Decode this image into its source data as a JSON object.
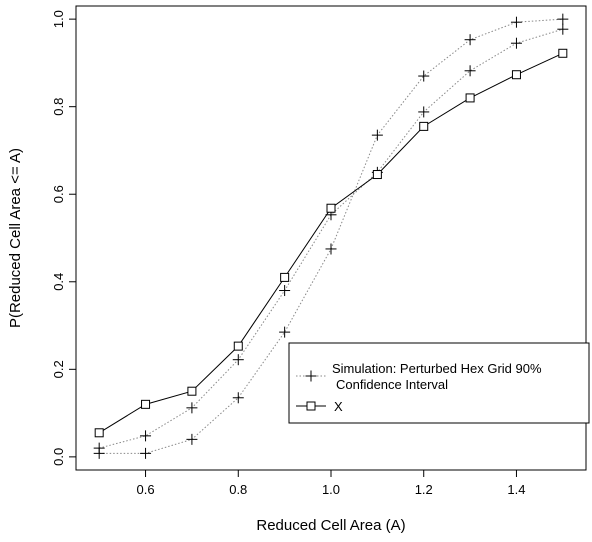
{
  "chart_data": {
    "type": "line",
    "xlabel": "Reduced Cell Area (A)",
    "ylabel": "P(Reduced Cell Area <= A)",
    "xlim": [
      0.45,
      1.55
    ],
    "ylim": [
      -0.03,
      1.03
    ],
    "x_ticks": [
      "0.6",
      "0.8",
      "1.0",
      "1.2",
      "1.4"
    ],
    "y_ticks": [
      "0.0",
      "0.2",
      "0.4",
      "0.6",
      "0.8",
      "1.0"
    ],
    "x": [
      0.5,
      0.6,
      0.7,
      0.8,
      0.9,
      1.0,
      1.1,
      1.2,
      1.3,
      1.4,
      1.5
    ],
    "legend_position": "lower-right",
    "series": [
      {
        "name": "Simulation: Perturbed Hex Grid 90% Confidence Interval",
        "style": "dotted-plus",
        "values": [
          0.008,
          0.008,
          0.04,
          0.135,
          0.285,
          0.475,
          0.735,
          0.87,
          0.953,
          0.993,
          1.0
        ]
      },
      {
        "name": "",
        "style": "dotted-plus",
        "values": [
          0.02,
          0.048,
          0.112,
          0.222,
          0.38,
          0.553,
          0.65,
          0.788,
          0.882,
          0.945,
          0.977
        ]
      },
      {
        "name": "X",
        "style": "solid-square",
        "values": [
          0.055,
          0.12,
          0.15,
          0.253,
          0.41,
          0.568,
          0.645,
          0.755,
          0.82,
          0.873,
          0.922
        ]
      }
    ],
    "legend": {
      "entry1_line1": "Simulation: Perturbed Hex Grid 90%",
      "entry1_line2": "Confidence Interval",
      "entry2": "X"
    },
    "colors": {
      "axis": "#000000",
      "dotted": "#888888",
      "solid": "#000000"
    }
  }
}
